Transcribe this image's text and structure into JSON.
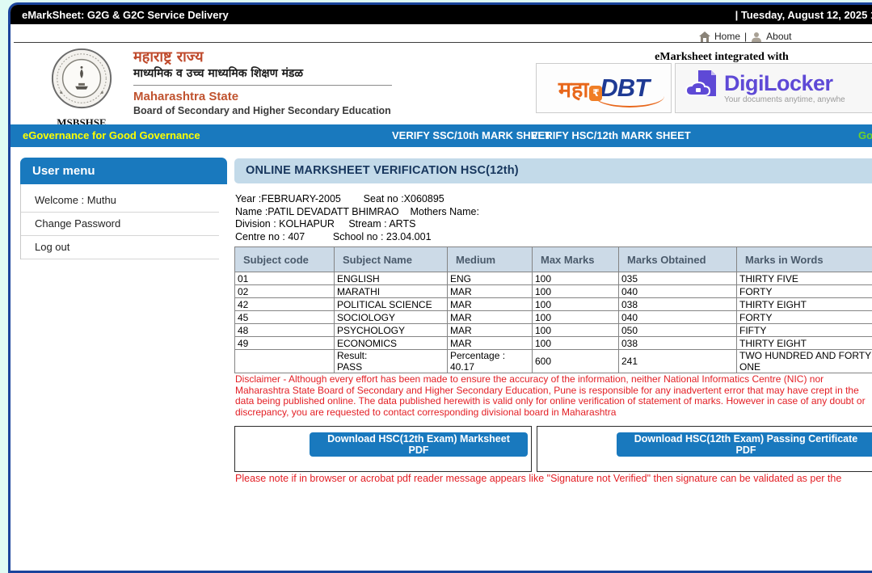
{
  "titlebar": {
    "title": "eMarkSheet: G2G & G2C Service Delivery",
    "datetime": "| Tuesday, August 12, 2025 12:0"
  },
  "topnav": {
    "home_label": "Home",
    "separator": "|",
    "about_label": "About"
  },
  "branding": {
    "seal_caption": "MSBSHSE",
    "marathi_line1": "महाराष्ट्र राज्य",
    "marathi_line2": "माध्यमिक व उच्च माध्यमिक शिक्षण मंडळ",
    "english_line1": "Maharashtra State",
    "english_line2": "Board of Secondary and Higher Secondary Education",
    "integrated_label": "eMarksheet integrated with",
    "mahadbt": {
      "maha": "महा",
      "rupee": "₹",
      "dbt": "DBT"
    },
    "digilocker": {
      "name": "DigiLocker",
      "tagline": "Your documents anytime, anywhe"
    }
  },
  "navbar": {
    "egov_label": "eGovernance for Good Governance",
    "verify_ssc_label": "VERIFY SSC/10th MARK SHEET",
    "verify_hsc_label": "VERIFY HSC/12th MARK SHEET",
    "marquee_text": "Goo"
  },
  "sidebar": {
    "header": "User menu",
    "welcome": "Welcome : Muthu",
    "change_password": "Change Password",
    "logout": "Log out"
  },
  "main": {
    "title": "ONLINE MARKSHEET VERIFICATION HSC(12th)",
    "details": [
      "Year :FEBRUARY-2005        Seat no :X060895",
      "Name :PATIL DEVADATT BHIMRAO    Mothers Name:",
      "Division : KOLHAPUR     Stream : ARTS",
      "Centre no : 407          School no : 23.04.001"
    ],
    "table": {
      "headers": [
        "Subject code",
        "Subject Name",
        "Medium",
        "Max Marks",
        "Marks Obtained",
        "Marks in Words"
      ],
      "rows": [
        [
          "01",
          "ENGLISH",
          "ENG",
          "100",
          "035",
          "THIRTY FIVE"
        ],
        [
          "02",
          "MARATHI",
          "MAR",
          "100",
          "040",
          "FORTY"
        ],
        [
          "42",
          "POLITICAL SCIENCE",
          "MAR",
          "100",
          "038",
          "THIRTY EIGHT"
        ],
        [
          "45",
          "SOCIOLOGY",
          "MAR",
          "100",
          "040",
          "FORTY"
        ],
        [
          "48",
          "PSYCHOLOGY",
          "MAR",
          "100",
          "050",
          "FIFTY"
        ],
        [
          "49",
          "ECONOMICS",
          "MAR",
          "100",
          "038",
          "THIRTY EIGHT"
        ],
        [
          "",
          "Result:\nPASS",
          "Percentage :\n40.17",
          "600",
          "241",
          "TWO HUNDRED AND FORTY ONE"
        ]
      ]
    },
    "disclaimer": "Disclaimer - Although every effort has been made to ensure the accuracy of the information, neither National Informatics Centre (NIC) nor Maharashtra State Board of Secondary and Higher Secondary Education, Pune is responsible for any inadvertent error that may have crept in the data being published online. The data published herewith is valid only for online verification of statement of marks. However in case of any doubt or discrepancy, you are requested to contact corresponding divisional board in Maharashtra",
    "buttons": {
      "marksheet_pdf": "Download HSC(12th Exam) Marksheet PDF",
      "passing_cert_pdf": "Download HSC(12th Exam) Passing Certificate PDF"
    },
    "signature_note": "Please note if in browser or acrobat pdf reader message appears like \"Signature not Verified\" then signature can be validated as per the"
  },
  "colors": {
    "accent_blue": "#1979be",
    "container_border": "#1a449c",
    "title_bar_bg": "#c3dae9",
    "title_text": "#17365d",
    "table_header_bg": "#ccdae7",
    "alert_red": "#e31e24",
    "brand_orange": "#c0532f",
    "egov_yellow": "#ffff00",
    "marquee_green": "#6fd327",
    "digilocker_purple": "#5e49d6",
    "page_bg": "#dffbf4"
  }
}
